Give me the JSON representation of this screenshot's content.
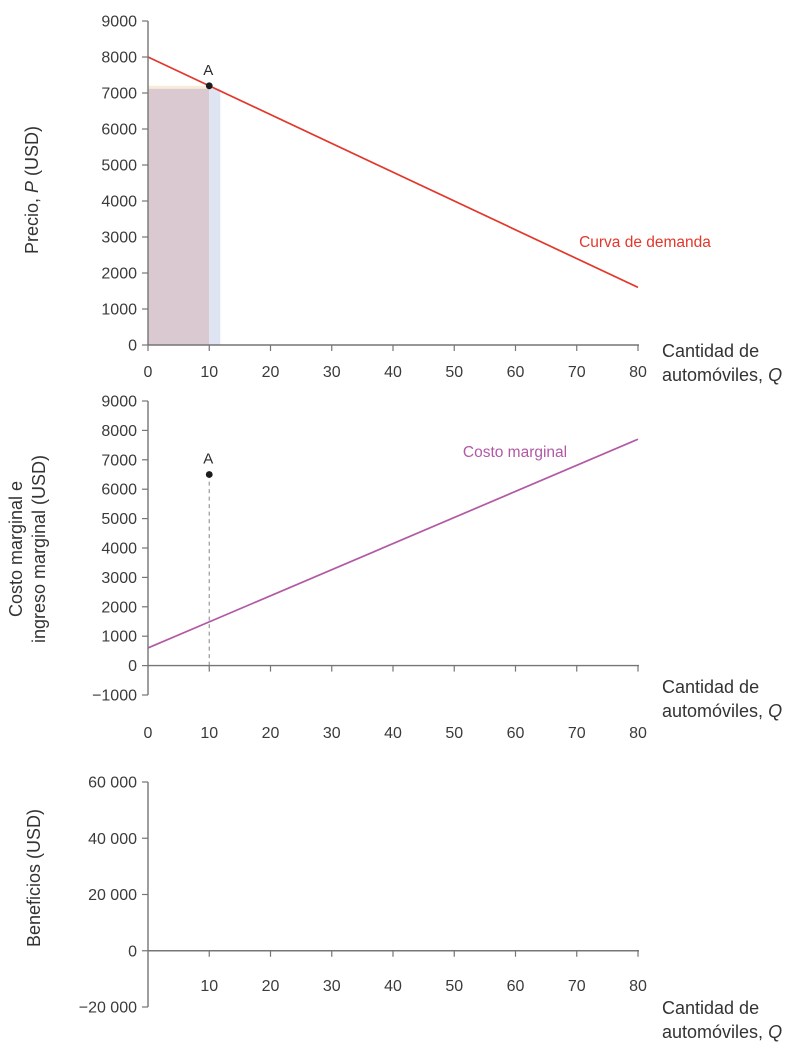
{
  "figure": {
    "background": "#ffffff",
    "axis_color": "#757575",
    "tick_text_color": "#3b3b3b",
    "caption_text_color": "#333333",
    "dot_color": "#1c1c1c",
    "dash_color": "#999999"
  },
  "chart_data": [
    {
      "panel": "demanda",
      "type": "line",
      "ylabel_parts": [
        {
          "t": "Precio, "
        },
        {
          "t": "P",
          "i": true
        },
        {
          "t": " (USD)"
        }
      ],
      "xlabel_lines": [
        [
          {
            "t": "Cantidad de"
          }
        ],
        [
          {
            "t": "automóviles, "
          },
          {
            "t": "Q",
            "i": true
          }
        ]
      ],
      "xlim": [
        0,
        80
      ],
      "ylim": [
        0,
        9000
      ],
      "x_ticks": [
        {
          "v": 0,
          "label": "0",
          "mark": true
        },
        {
          "v": 10,
          "label": "10",
          "mark": true
        },
        {
          "v": 20,
          "label": "20",
          "mark": true
        },
        {
          "v": 30,
          "label": "30",
          "mark": true
        },
        {
          "v": 40,
          "label": "40",
          "mark": true
        },
        {
          "v": 50,
          "label": "50",
          "mark": true
        },
        {
          "v": 60,
          "label": "60",
          "mark": true
        },
        {
          "v": 70,
          "label": "70",
          "mark": true
        },
        {
          "v": 80,
          "label": "80",
          "mark": true
        }
      ],
      "y_ticks": [
        {
          "v": 0,
          "label": "0"
        },
        {
          "v": 1000,
          "label": "1000"
        },
        {
          "v": 2000,
          "label": "2000"
        },
        {
          "v": 3000,
          "label": "3000"
        },
        {
          "v": 4000,
          "label": "4000"
        },
        {
          "v": 5000,
          "label": "5000"
        },
        {
          "v": 6000,
          "label": "6000"
        },
        {
          "v": 7000,
          "label": "7000"
        },
        {
          "v": 8000,
          "label": "8000"
        },
        {
          "v": 9000,
          "label": "9000"
        }
      ],
      "regions": [
        {
          "name": "revenue-rectangle",
          "x0": 0,
          "x1": 10,
          "y0": 0,
          "y1": 7120,
          "color": "#dbc9d1"
        },
        {
          "name": "price-drop-strip",
          "x0": 0,
          "x1": 10,
          "y0": 7120,
          "y1": 7200,
          "color": "#f7ecd8"
        },
        {
          "name": "extra-unit-strip",
          "x0": 10,
          "x1": 11.8,
          "y0": 0,
          "y1": 7120,
          "color": "#dfe4f2"
        }
      ],
      "series": [
        {
          "name": "Curva de demanda",
          "color": "#e2372b",
          "points": [
            [
              0,
              8000
            ],
            [
              80,
              1600
            ]
          ]
        }
      ],
      "series_label": {
        "text": "Curva de demanda",
        "color": "#e2372b"
      },
      "point": {
        "label": "A",
        "x": 10,
        "y": 7200,
        "dash_to_axis": false
      }
    },
    {
      "panel": "costo-marginal",
      "type": "line",
      "ylabel_lines": [
        "Costo marginal e",
        "ingreso marginal (USD)"
      ],
      "xlabel_lines": [
        [
          {
            "t": "Cantidad de"
          }
        ],
        [
          {
            "t": "automóviles, "
          },
          {
            "t": "Q",
            "i": true
          }
        ]
      ],
      "xlim": [
        0,
        80
      ],
      "ylim": [
        -1000,
        9000
      ],
      "x_ticks": [
        {
          "v": 0,
          "label": "0",
          "mark": false
        },
        {
          "v": 10,
          "label": "10",
          "mark": true
        },
        {
          "v": 20,
          "label": "20",
          "mark": true
        },
        {
          "v": 30,
          "label": "30",
          "mark": true
        },
        {
          "v": 40,
          "label": "40",
          "mark": true
        },
        {
          "v": 50,
          "label": "50",
          "mark": true
        },
        {
          "v": 60,
          "label": "60",
          "mark": true
        },
        {
          "v": 70,
          "label": "70",
          "mark": true
        },
        {
          "v": 80,
          "label": "80",
          "mark": true
        }
      ],
      "y_ticks": [
        {
          "v": -1000,
          "label": "−1000"
        },
        {
          "v": 0,
          "label": "0"
        },
        {
          "v": 1000,
          "label": "1000"
        },
        {
          "v": 2000,
          "label": "2000"
        },
        {
          "v": 3000,
          "label": "3000"
        },
        {
          "v": 4000,
          "label": "4000"
        },
        {
          "v": 5000,
          "label": "5000"
        },
        {
          "v": 6000,
          "label": "6000"
        },
        {
          "v": 7000,
          "label": "7000"
        },
        {
          "v": 8000,
          "label": "8000"
        },
        {
          "v": 9000,
          "label": "9000"
        }
      ],
      "regions": [],
      "series": [
        {
          "name": "Costo marginal",
          "color": "#b159a5",
          "points": [
            [
              0,
              600
            ],
            [
              80,
              7700
            ]
          ]
        }
      ],
      "series_label": {
        "text": "Costo marginal",
        "color": "#b159a5"
      },
      "point": {
        "label": "A",
        "x": 10,
        "y": 6500,
        "dash_to_axis": true
      }
    },
    {
      "panel": "beneficios",
      "type": "line",
      "ylabel_lines": [
        "Beneficios (USD)"
      ],
      "xlabel_lines": [
        [
          {
            "t": "Cantidad de"
          }
        ],
        [
          {
            "t": "automóviles, "
          },
          {
            "t": "Q",
            "i": true
          }
        ]
      ],
      "xlim": [
        0,
        80
      ],
      "ylim": [
        -20000,
        60000
      ],
      "x_ticks": [
        {
          "v": 10,
          "label": "10",
          "mark": true
        },
        {
          "v": 20,
          "label": "20",
          "mark": true
        },
        {
          "v": 30,
          "label": "30",
          "mark": true
        },
        {
          "v": 40,
          "label": "40",
          "mark": true
        },
        {
          "v": 50,
          "label": "50",
          "mark": true
        },
        {
          "v": 60,
          "label": "60",
          "mark": true
        },
        {
          "v": 70,
          "label": "70",
          "mark": true
        },
        {
          "v": 80,
          "label": "80",
          "mark": true
        }
      ],
      "y_ticks": [
        {
          "v": -20000,
          "label": "−20 000"
        },
        {
          "v": 0,
          "label": "0"
        },
        {
          "v": 20000,
          "label": "20 000"
        },
        {
          "v": 40000,
          "label": "40 000"
        },
        {
          "v": 60000,
          "label": "60 000"
        }
      ],
      "regions": [],
      "series": [],
      "series_label": null,
      "point": null
    }
  ]
}
